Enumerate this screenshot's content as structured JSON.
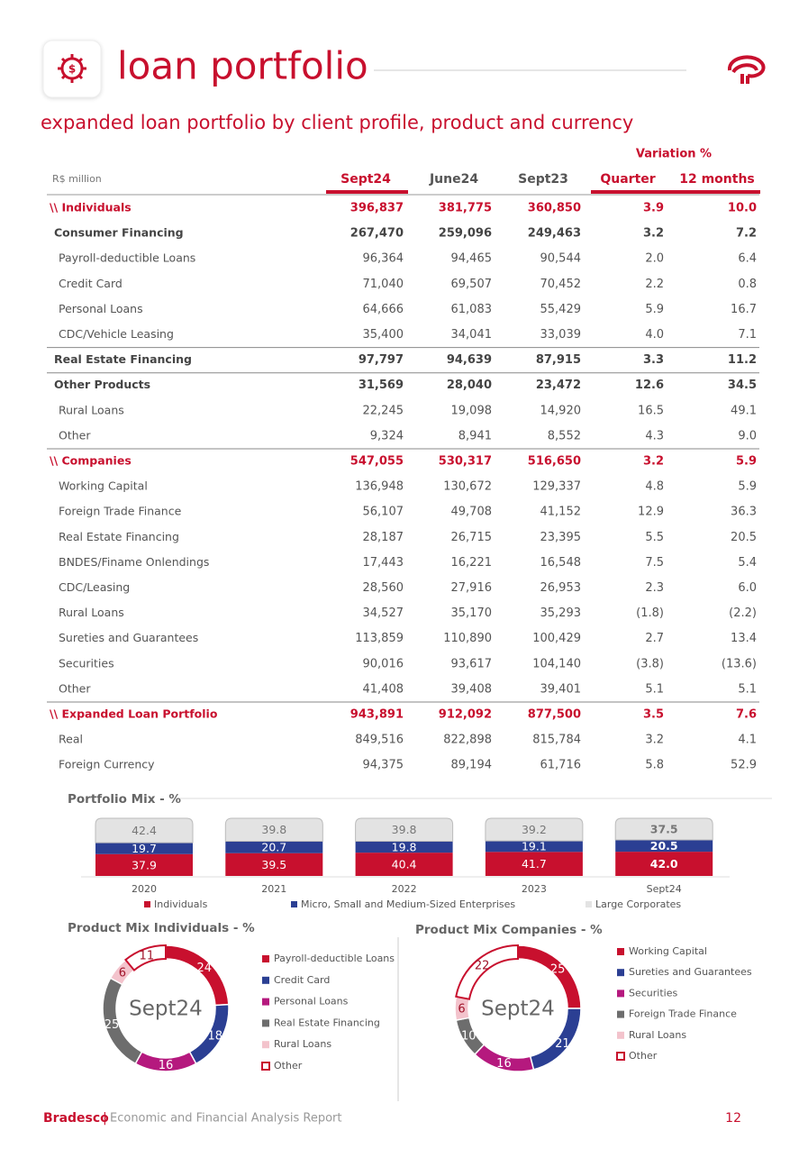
{
  "header": {
    "title": "loan portfolio",
    "subtitle": "expanded loan portfolio by client profile, product and currency"
  },
  "table": {
    "unit": "R$ million",
    "variation_label": "Variation %",
    "columns": [
      "Sept24",
      "June24",
      "Sept23",
      "Quarter",
      "12 months"
    ],
    "rows": [
      {
        "label": "\\\\ Individuals",
        "kind": "section",
        "values": [
          "396,837",
          "381,775",
          "360,850",
          "3.9",
          "10.0"
        ]
      },
      {
        "label": "Consumer Financing",
        "kind": "group",
        "values": [
          "267,470",
          "259,096",
          "249,463",
          "3.2",
          "7.2"
        ]
      },
      {
        "label": "Payroll-deductible Loans",
        "kind": "item",
        "values": [
          "96,364",
          "94,465",
          "90,544",
          "2.0",
          "6.4"
        ]
      },
      {
        "label": "Credit Card",
        "kind": "item",
        "values": [
          "71,040",
          "69,507",
          "70,452",
          "2.2",
          "0.8"
        ]
      },
      {
        "label": "Personal Loans",
        "kind": "item",
        "values": [
          "64,666",
          "61,083",
          "55,429",
          "5.9",
          "16.7"
        ]
      },
      {
        "label": "CDC/Vehicle Leasing",
        "kind": "item",
        "values": [
          "35,400",
          "34,041",
          "33,039",
          "4.0",
          "7.1"
        ]
      },
      {
        "label": "Real Estate Financing",
        "kind": "group",
        "values": [
          "97,797",
          "94,639",
          "87,915",
          "3.3",
          "11.2"
        ]
      },
      {
        "label": "Other Products",
        "kind": "group",
        "values": [
          "31,569",
          "28,040",
          "23,472",
          "12.6",
          "34.5"
        ]
      },
      {
        "label": "Rural Loans",
        "kind": "item",
        "values": [
          "22,245",
          "19,098",
          "14,920",
          "16.5",
          "49.1"
        ]
      },
      {
        "label": "Other",
        "kind": "item",
        "values": [
          "9,324",
          "8,941",
          "8,552",
          "4.3",
          "9.0"
        ]
      },
      {
        "label": "\\\\ Companies",
        "kind": "section",
        "values": [
          "547,055",
          "530,317",
          "516,650",
          "3.2",
          "5.9"
        ]
      },
      {
        "label": "Working Capital",
        "kind": "item",
        "values": [
          "136,948",
          "130,672",
          "129,337",
          "4.8",
          "5.9"
        ]
      },
      {
        "label": "Foreign Trade Finance",
        "kind": "item",
        "values": [
          "56,107",
          "49,708",
          "41,152",
          "12.9",
          "36.3"
        ]
      },
      {
        "label": "Real Estate Financing",
        "kind": "item",
        "values": [
          "28,187",
          "26,715",
          "23,395",
          "5.5",
          "20.5"
        ]
      },
      {
        "label": "BNDES/Finame Onlendings",
        "kind": "item",
        "values": [
          "17,443",
          "16,221",
          "16,548",
          "7.5",
          "5.4"
        ]
      },
      {
        "label": "CDC/Leasing",
        "kind": "item",
        "values": [
          "28,560",
          "27,916",
          "26,953",
          "2.3",
          "6.0"
        ]
      },
      {
        "label": "Rural Loans",
        "kind": "item",
        "values": [
          "34,527",
          "35,170",
          "35,293",
          "(1.8)",
          "(2.2)"
        ]
      },
      {
        "label": "Sureties and Guarantees",
        "kind": "item",
        "values": [
          "113,859",
          "110,890",
          "100,429",
          "2.7",
          "13.4"
        ]
      },
      {
        "label": "Securities",
        "kind": "item",
        "values": [
          "90,016",
          "93,617",
          "104,140",
          "(3.8)",
          "(13.6)"
        ]
      },
      {
        "label": "Other",
        "kind": "item",
        "values": [
          "41,408",
          "39,408",
          "39,401",
          "5.1",
          "5.1"
        ]
      },
      {
        "label": "\\\\ Expanded Loan Portfolio",
        "kind": "section",
        "values": [
          "943,891",
          "912,092",
          "877,500",
          "3.5",
          "7.6"
        ]
      },
      {
        "label": "Real",
        "kind": "item",
        "values": [
          "849,516",
          "822,898",
          "815,784",
          "3.2",
          "4.1"
        ]
      },
      {
        "label": "Foreign Currency",
        "kind": "item",
        "values": [
          "94,375",
          "89,194",
          "61,716",
          "5.8",
          "52.9"
        ]
      }
    ]
  },
  "chart_data": [
    {
      "type": "stacked_bar",
      "title": "Portfolio Mix - %",
      "categories": [
        "2020",
        "2021",
        "2022",
        "2023",
        "Sept24"
      ],
      "series": [
        {
          "name": "Individuals",
          "color": "#c8102e",
          "values": [
            37.9,
            39.5,
            40.4,
            41.7,
            42.0
          ],
          "value_labels": [
            "37.9",
            "39.5",
            "40.4",
            "41.7",
            "42.0"
          ]
        },
        {
          "name": "Micro, Small and Medium-Sized Enterprises",
          "color": "#2b3f93",
          "values": [
            19.7,
            20.7,
            19.8,
            19.1,
            20.5
          ],
          "value_labels": [
            "19.7",
            "20.7",
            "19.8",
            "19.1",
            "20.5"
          ]
        },
        {
          "name": "Large Corporates",
          "color": "#e3e3e3",
          "values": [
            42.4,
            39.8,
            39.8,
            39.2,
            37.5
          ],
          "value_labels": [
            "42.4",
            "39.8",
            "39.8",
            "39.2",
            "37.5"
          ]
        }
      ]
    },
    {
      "type": "donut",
      "title": "Product Mix Individuals - %",
      "center_label": "Sept24",
      "categories": [
        "Payroll-deductible Loans",
        "Credit Card",
        "Personal Loans",
        "Real Estate Financing",
        "Rural Loans",
        "Other"
      ],
      "values": [
        24,
        18,
        16,
        25,
        6,
        11
      ],
      "colors": [
        "#c8102e",
        "#2b3f93",
        "#b5197e",
        "#6d6d6d",
        "#f3c3cc",
        "#ffffff"
      ]
    },
    {
      "type": "donut",
      "title": "Product Mix Companies - %",
      "center_label": "Sept24",
      "categories": [
        "Working Capital",
        "Sureties and Guarantees",
        "Securities",
        "Foreign Trade Finance",
        "Rural Loans",
        "Other"
      ],
      "values": [
        25,
        21,
        16,
        10,
        6,
        22
      ],
      "colors": [
        "#c8102e",
        "#2b3f93",
        "#b5197e",
        "#6d6d6d",
        "#f3c3cc",
        "#ffffff"
      ]
    }
  ],
  "footer": {
    "brand": "Bradesco",
    "separator": "|",
    "report": "Economic and Financial Analysis Report",
    "page": "12"
  }
}
